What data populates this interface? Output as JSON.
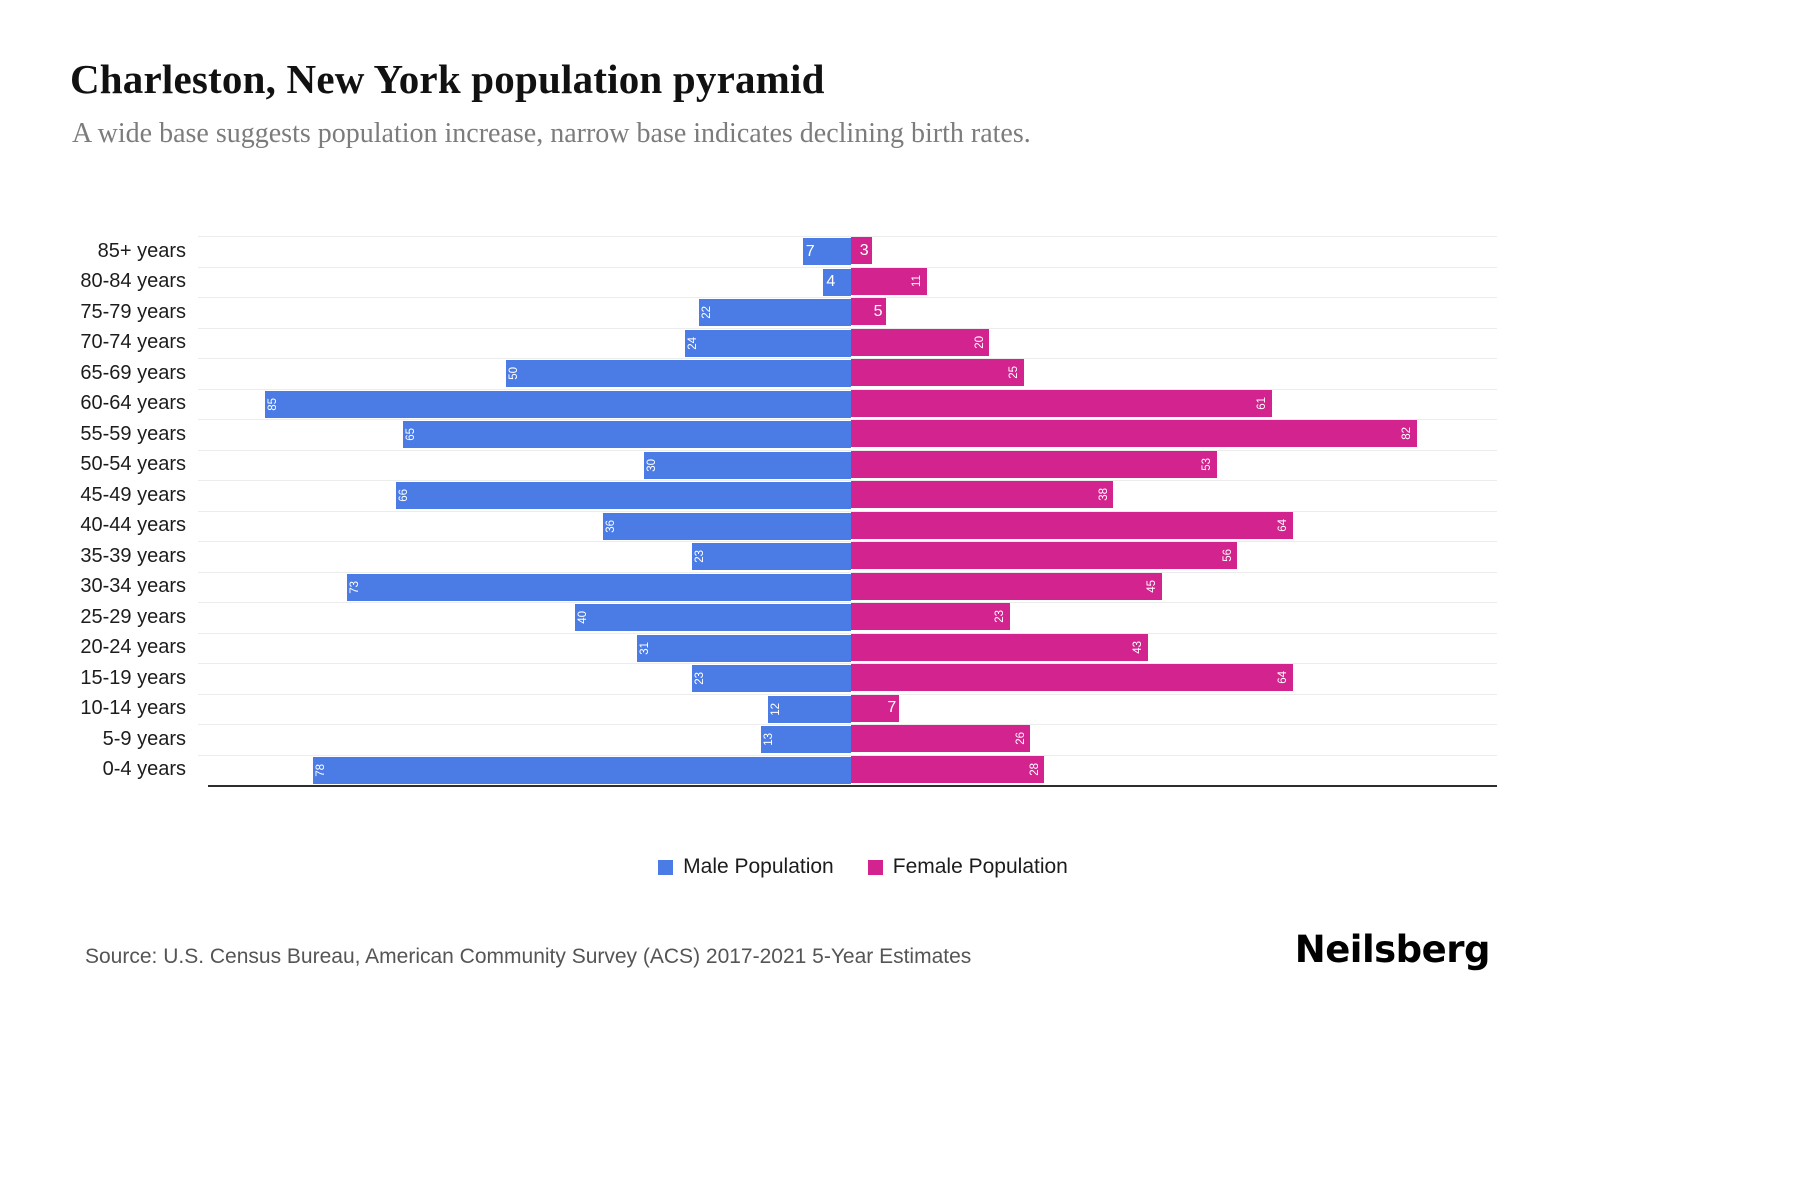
{
  "header": {
    "title": "Charleston, New York population pyramid",
    "subtitle": "A wide base suggests population increase, narrow base indicates declining birth rates."
  },
  "legend": {
    "male": "Male Population",
    "female": "Female Population"
  },
  "footer": {
    "source": "Source: U.S. Census Bureau, American Community Survey (ACS) 2017-2021 5-Year Estimates",
    "logo": "Neilsberg"
  },
  "colors": {
    "male": "#4b7be5",
    "female": "#d2238e",
    "grid": "#ececec",
    "axis": "#2e2e2e"
  },
  "chart_data": {
    "type": "bar",
    "subtype": "population-pyramid",
    "title": "Charleston, New York population pyramid",
    "categories": [
      "85+ years",
      "80-84 years",
      "75-79 years",
      "70-74 years",
      "65-69 years",
      "60-64 years",
      "55-59 years",
      "50-54 years",
      "45-49 years",
      "40-44 years",
      "35-39 years",
      "30-34 years",
      "25-29 years",
      "20-24 years",
      "15-19 years",
      "10-14 years",
      "5-9 years",
      "0-4 years"
    ],
    "series": [
      {
        "name": "Male Population",
        "values": [
          7,
          4,
          22,
          24,
          50,
          85,
          65,
          30,
          66,
          36,
          23,
          73,
          40,
          31,
          23,
          12,
          13,
          78
        ]
      },
      {
        "name": "Female Population",
        "values": [
          3,
          11,
          5,
          20,
          25,
          61,
          82,
          53,
          38,
          64,
          56,
          45,
          23,
          43,
          64,
          7,
          26,
          28
        ]
      }
    ],
    "xlim": [
      0,
      85
    ],
    "grid": "horizontal",
    "legend_position": "bottom",
    "value_labels": "inside-outer-end"
  }
}
